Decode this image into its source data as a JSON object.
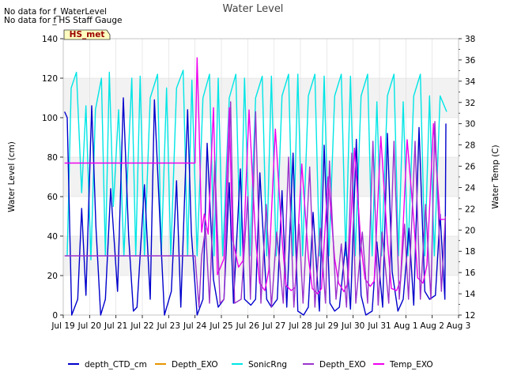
{
  "chart_data": {
    "type": "line",
    "title": "Water Level",
    "notes": [
      "No data for f_WaterLevel",
      "No data for f_HS_Staff_Gauge"
    ],
    "notes_display": [
      "No data for f_WaterLevel",
      "No data for f̲ HS Staff Gauge"
    ],
    "badge": "HS_met",
    "ylabel": "Water Level (cm)",
    "y2label": "Water Temp (C)",
    "ylim": [
      0,
      140
    ],
    "y2lim": [
      12,
      38
    ],
    "yticks": [
      "0",
      "20",
      "40",
      "60",
      "80",
      "100",
      "120",
      "140"
    ],
    "y2ticks": [
      "12",
      "14",
      "16",
      "18",
      "20",
      "22",
      "24",
      "26",
      "28",
      "30",
      "32",
      "34",
      "36",
      "38"
    ],
    "xlim_days": [
      0,
      15
    ],
    "xticks": [
      "Jul 19",
      "Jul 20",
      "Jul 21",
      "Jul 22",
      "Jul 23",
      "Jul 24",
      "Jul 25",
      "Jul 26",
      "Jul 27",
      "Jul 28",
      "Jul 29",
      "Jul 30",
      "Jul 31",
      "Aug 1",
      "Aug 2",
      "Aug 3"
    ],
    "legend_position": "bottom",
    "series": [
      {
        "name": "depth_CTD_cm",
        "color": "#0000cc",
        "axis": "left",
        "x": [
          0.05,
          0.15,
          0.32,
          0.55,
          0.7,
          0.86,
          1.08,
          1.24,
          1.42,
          1.6,
          1.8,
          2.06,
          2.28,
          2.48,
          2.66,
          2.8,
          3.08,
          3.3,
          3.46,
          3.68,
          3.84,
          4.1,
          4.3,
          4.46,
          4.72,
          4.86,
          5.08,
          5.3,
          5.46,
          5.7,
          5.88,
          6.1,
          6.3,
          6.46,
          6.72,
          6.88,
          7.12,
          7.3,
          7.46,
          7.72,
          7.9,
          8.12,
          8.3,
          8.48,
          8.72,
          8.9,
          9.12,
          9.3,
          9.48,
          9.72,
          9.9,
          10.12,
          10.3,
          10.48,
          10.72,
          10.9,
          11.12,
          11.3,
          11.48,
          11.72,
          11.9,
          12.12,
          12.3,
          12.48,
          12.7,
          12.9,
          13.12,
          13.3,
          13.5,
          13.72,
          13.9,
          14.12,
          14.3,
          14.48,
          14.52
        ],
        "y": [
          103,
          100,
          0,
          8,
          54,
          10,
          106,
          45,
          0,
          8,
          64,
          12,
          110,
          40,
          2,
          4,
          66,
          8,
          109,
          44,
          0,
          12,
          68,
          4,
          104,
          42,
          0,
          8,
          87,
          18,
          4,
          8,
          67,
          6,
          74,
          8,
          5,
          8,
          72,
          8,
          4,
          8,
          63,
          4,
          82,
          2,
          0,
          4,
          52,
          2,
          86,
          6,
          2,
          4,
          37,
          3,
          89,
          10,
          0,
          2,
          37,
          4,
          92,
          22,
          2,
          8,
          44,
          5,
          95,
          12,
          8,
          10,
          51,
          8,
          97
        ]
      },
      {
        "name": "Depth_EXO",
        "color": "#e69500",
        "axis": "left",
        "x": [],
        "y": []
      },
      {
        "name": "SonicRng",
        "color": "#00e5e5",
        "axis": "left",
        "x": [
          0.15,
          0.3,
          0.5,
          0.7,
          0.86,
          1.05,
          1.22,
          1.45,
          1.6,
          1.75,
          1.9,
          2.1,
          2.3,
          2.6,
          2.75,
          2.92,
          3.08,
          3.3,
          3.58,
          3.72,
          3.92,
          4.08,
          4.3,
          4.55,
          4.72,
          4.88,
          5.08,
          5.3,
          5.55,
          5.72,
          5.88,
          6.05,
          6.3,
          6.55,
          6.72,
          6.88,
          7.08,
          7.3,
          7.55,
          7.72,
          7.9,
          8.08,
          8.3,
          8.55,
          8.72,
          8.9,
          9.08,
          9.3,
          9.55,
          9.72,
          9.9,
          10.08,
          10.3,
          10.55,
          10.72,
          10.9,
          11.08,
          11.3,
          11.55,
          11.72,
          11.9,
          12.08,
          12.3,
          12.55,
          12.72,
          12.9,
          13.08,
          13.3,
          13.55,
          13.72,
          13.9,
          14.08,
          14.3,
          14.55
        ],
        "y": [
          30,
          115,
          123,
          62,
          106,
          28,
          104,
          120,
          30,
          123,
          55,
          104,
          30,
          120,
          30,
          121,
          30,
          110,
          122,
          30,
          115,
          30,
          115,
          124,
          30,
          119,
          30,
          110,
          122,
          30,
          120,
          30,
          110,
          122,
          30,
          120,
          30,
          110,
          121,
          30,
          121,
          30,
          111,
          122,
          30,
          122,
          30,
          111,
          122,
          30,
          121,
          30,
          111,
          122,
          30,
          121,
          30,
          111,
          122,
          30,
          108,
          30,
          111,
          122,
          30,
          108,
          30,
          111,
          122,
          30,
          111,
          30,
          111,
          103
        ]
      },
      {
        "name": "Depth_EXO",
        "color": "#9933cc",
        "axis": "left",
        "x": [
          0.05,
          5.0,
          5.15,
          5.25,
          5.4,
          5.55,
          5.75,
          5.95,
          6.1,
          6.35,
          6.5,
          6.75,
          7.0,
          7.1,
          7.3,
          7.5,
          7.7,
          7.9,
          8.1,
          8.35,
          8.55,
          8.75,
          8.95,
          9.1,
          9.35,
          9.55,
          9.75,
          9.95,
          10.1,
          10.35,
          10.55,
          10.75,
          10.95,
          11.1,
          11.35,
          11.55,
          11.75,
          11.95,
          12.1,
          12.35,
          12.55,
          12.75,
          12.95,
          13.1,
          13.35,
          13.55,
          13.75,
          13.95,
          14.1,
          14.35,
          14.5
        ],
        "y": [
          30,
          30,
          4,
          30,
          44,
          6,
          78,
          6,
          8,
          108,
          6,
          8,
          60,
          8,
          103,
          6,
          56,
          4,
          42,
          6,
          80,
          4,
          46,
          6,
          75,
          4,
          44,
          6,
          78,
          8,
          36,
          4,
          82,
          6,
          42,
          6,
          88,
          5,
          42,
          6,
          88,
          8,
          46,
          8,
          88,
          8,
          56,
          8,
          98,
          12,
          50
        ]
      },
      {
        "name": "Temp_EXO",
        "color": "#ee00ee",
        "axis": "right",
        "x": [
          0.05,
          5.0,
          5.08,
          5.15,
          5.25,
          5.35,
          5.5,
          5.7,
          5.85,
          6.1,
          6.3,
          6.42,
          6.65,
          6.82,
          7.05,
          7.3,
          7.45,
          7.65,
          7.8,
          8.05,
          8.3,
          8.45,
          8.65,
          8.8,
          9.05,
          9.3,
          9.45,
          9.65,
          9.8,
          10.05,
          10.3,
          10.45,
          10.65,
          10.8,
          11.05,
          11.3,
          11.45,
          11.65,
          11.8,
          12.05,
          12.3,
          12.45,
          12.65,
          12.8,
          13.05,
          13.3,
          13.45,
          13.65,
          13.8,
          14.05,
          14.3,
          14.48
        ],
        "y": [
          26.3,
          26.3,
          36.2,
          30.0,
          19.8,
          21.5,
          19.6,
          31.5,
          15.8,
          17.3,
          31.5,
          19.2,
          16.5,
          17.1,
          31.3,
          19.2,
          15.0,
          14.3,
          16.2,
          29.5,
          19.2,
          14.8,
          14.3,
          14.6,
          26.2,
          17.5,
          14.5,
          14.0,
          14.5,
          25.0,
          17.3,
          15.0,
          14.2,
          15.0,
          27.7,
          18.5,
          15.4,
          14.7,
          15.2,
          28.8,
          19.0,
          14.5,
          14.3,
          15.3,
          28.5,
          21.0,
          15.5,
          15.0,
          16.7,
          30.0,
          21.0,
          21.0
        ]
      }
    ]
  }
}
